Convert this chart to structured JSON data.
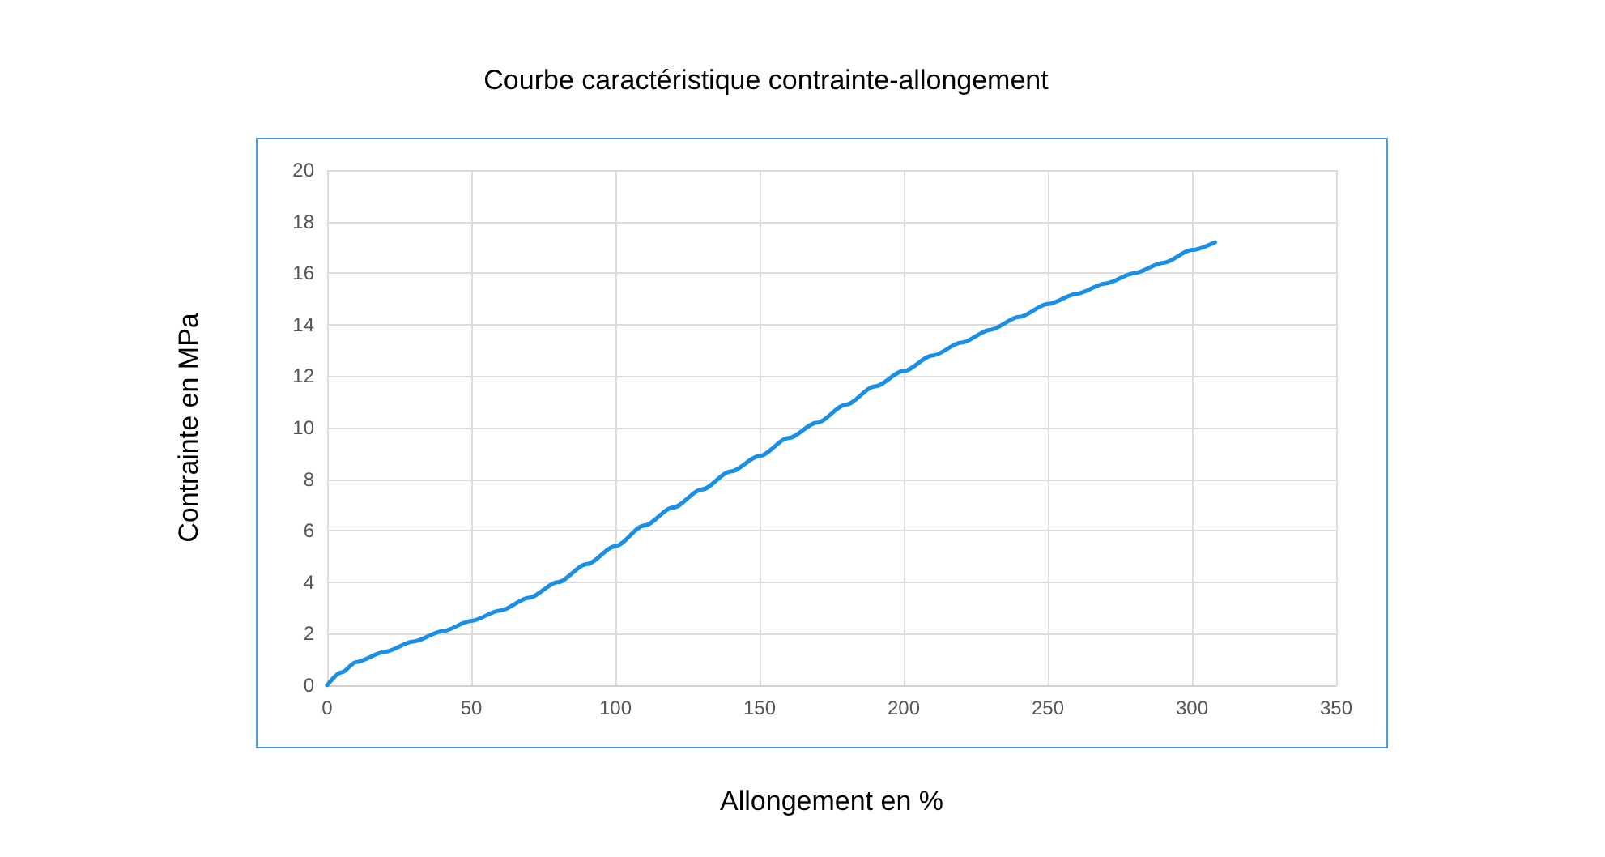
{
  "chart_data": {
    "type": "line",
    "title": "Courbe caractéristique contrainte-allongement",
    "xlabel": "Allongement en %",
    "ylabel": "Contrainte en MPa",
    "x": [
      0,
      5,
      10,
      20,
      30,
      40,
      50,
      60,
      70,
      80,
      90,
      100,
      110,
      120,
      130,
      140,
      150,
      160,
      170,
      180,
      190,
      200,
      210,
      220,
      230,
      240,
      250,
      260,
      270,
      280,
      290,
      300,
      308
    ],
    "series": [
      {
        "color": "#1a8fe3",
        "values": [
          0,
          0.5,
          0.9,
          1.3,
          1.7,
          2.1,
          2.5,
          2.9,
          3.4,
          4.0,
          4.7,
          5.4,
          6.2,
          6.9,
          7.6,
          8.3,
          8.9,
          9.6,
          10.2,
          10.9,
          11.6,
          12.2,
          12.8,
          13.3,
          13.8,
          14.3,
          14.8,
          15.2,
          15.6,
          16.0,
          16.4,
          16.9,
          17.2
        ]
      }
    ],
    "xlim": [
      0,
      350
    ],
    "xticks": [
      0,
      50,
      100,
      150,
      200,
      250,
      300,
      350
    ],
    "ylim": [
      0,
      20
    ],
    "yticks": [
      0,
      2,
      4,
      6,
      8,
      10,
      12,
      14,
      16,
      18,
      20
    ],
    "grid": true,
    "marker": "none",
    "line_style": "solid"
  }
}
